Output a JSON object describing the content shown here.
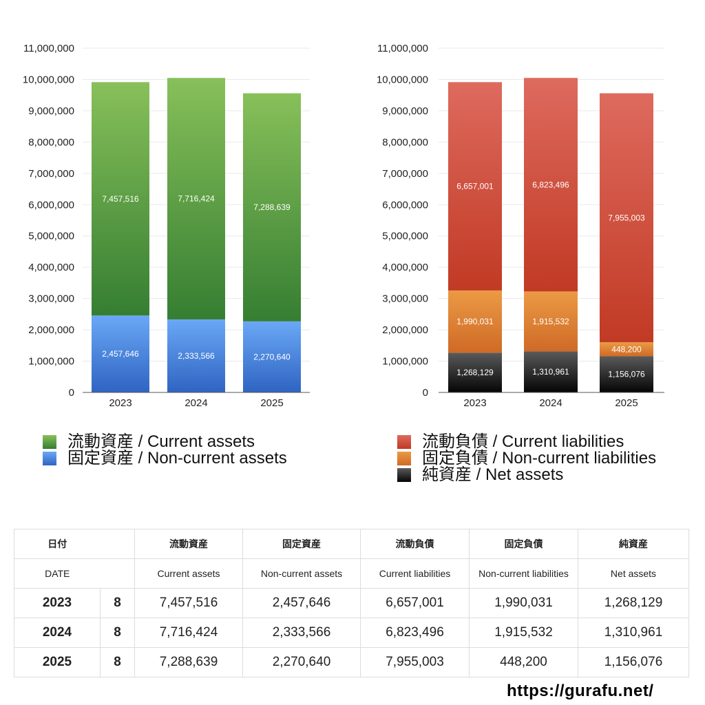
{
  "chart_data": [
    {
      "type": "bar",
      "stacked": true,
      "categories": [
        "2023",
        "2024",
        "2025"
      ],
      "series": [
        {
          "name": "固定資産 / Non-current assets",
          "values": [
            2457646,
            2333566,
            2270640
          ],
          "value_labels": [
            "2,457,646",
            "2,333,566",
            "2,270,640"
          ],
          "color_top": "#6aa8f6",
          "color_bottom": "#2f64c2"
        },
        {
          "name": "流動資産 / Current assets",
          "values": [
            7457516,
            7716424,
            7288639
          ],
          "value_labels": [
            "7,457,516",
            "7,716,424",
            "7,288,639"
          ],
          "color_top": "#88c05a",
          "color_bottom": "#357e32"
        }
      ],
      "ylim": [
        0,
        11000000
      ],
      "ytick_values": [
        0,
        1000000,
        2000000,
        3000000,
        4000000,
        5000000,
        6000000,
        7000000,
        8000000,
        9000000,
        10000000,
        11000000
      ],
      "yticks": [
        "0",
        "1,000,000",
        "2,000,000",
        "3,000,000",
        "4,000,000",
        "5,000,000",
        "6,000,000",
        "7,000,000",
        "8,000,000",
        "9,000,000",
        "10,000,000",
        "11,000,000"
      ],
      "grid": true
    },
    {
      "type": "bar",
      "stacked": true,
      "categories": [
        "2023",
        "2024",
        "2025"
      ],
      "series": [
        {
          "name": "純資産 / Net assets",
          "values": [
            1268129,
            1310961,
            1156076
          ],
          "value_labels": [
            "1,268,129",
            "1,310,961",
            "1,156,076"
          ],
          "color_top": "#5a5a5a",
          "color_bottom": "#050505"
        },
        {
          "name": "固定負債 / Non-current liabilities",
          "values": [
            1990031,
            1915532,
            448200
          ],
          "value_labels": [
            "1,990,031",
            "1,915,532",
            "448,200"
          ],
          "color_top": "#eb9a45",
          "color_bottom": "#cf6a26"
        },
        {
          "name": "流動負債 / Current liabilities",
          "values": [
            6657001,
            6823496,
            7955003
          ],
          "value_labels": [
            "6,657,001",
            "6,823,496",
            "7,955,003"
          ],
          "color_top": "#de6a5e",
          "color_bottom": "#c13a24"
        }
      ],
      "ylim": [
        0,
        11000000
      ],
      "ytick_values": [
        0,
        1000000,
        2000000,
        3000000,
        4000000,
        5000000,
        6000000,
        7000000,
        8000000,
        9000000,
        10000000,
        11000000
      ],
      "yticks": [
        "0",
        "1,000,000",
        "2,000,000",
        "3,000,000",
        "4,000,000",
        "5,000,000",
        "6,000,000",
        "7,000,000",
        "8,000,000",
        "9,000,000",
        "10,000,000",
        "11,000,000"
      ],
      "grid": true
    }
  ],
  "legend_left": [
    {
      "label": "流動資産 / Current assets",
      "color_top": "#88c05a",
      "color_bottom": "#357e32"
    },
    {
      "label": "固定資産 / Non-current assets",
      "color_top": "#6aa8f6",
      "color_bottom": "#2f64c2"
    }
  ],
  "legend_right": [
    {
      "label": "流動負債 / Current liabilities",
      "color_top": "#de6a5e",
      "color_bottom": "#c13a24"
    },
    {
      "label": "固定負債 / Non-current liabilities",
      "color_top": "#eb9a45",
      "color_bottom": "#cf6a26"
    },
    {
      "label": "純資産 / Net assets",
      "color_top": "#5a5a5a",
      "color_bottom": "#050505"
    }
  ],
  "table": {
    "header_jp": {
      "date": "日付",
      "current_assets": "流動資産",
      "noncurrent_assets": "固定資産",
      "current_liabilities": "流動負債",
      "noncurrent_liabilities": "固定負債",
      "net_assets": "純資産"
    },
    "header_en": {
      "date": "DATE",
      "current_assets": "Current assets",
      "noncurrent_assets": "Non-current assets",
      "current_liabilities": "Current liabilities",
      "noncurrent_liabilities": "Non-current liabilities",
      "net_assets": "Net assets"
    },
    "rows": [
      {
        "year": "2023",
        "month": "8",
        "current_assets": "7,457,516",
        "noncurrent_assets": "2,457,646",
        "current_liabilities": "6,657,001",
        "noncurrent_liabilities": "1,990,031",
        "net_assets": "1,268,129"
      },
      {
        "year": "2024",
        "month": "8",
        "current_assets": "7,716,424",
        "noncurrent_assets": "2,333,566",
        "current_liabilities": "6,823,496",
        "noncurrent_liabilities": "1,915,532",
        "net_assets": "1,310,961"
      },
      {
        "year": "2025",
        "month": "8",
        "current_assets": "7,288,639",
        "noncurrent_assets": "2,270,640",
        "current_liabilities": "7,955,003",
        "noncurrent_liabilities": "448,200",
        "net_assets": "1,156,076"
      }
    ]
  },
  "site": {
    "url": "https://gurafu.net/"
  }
}
